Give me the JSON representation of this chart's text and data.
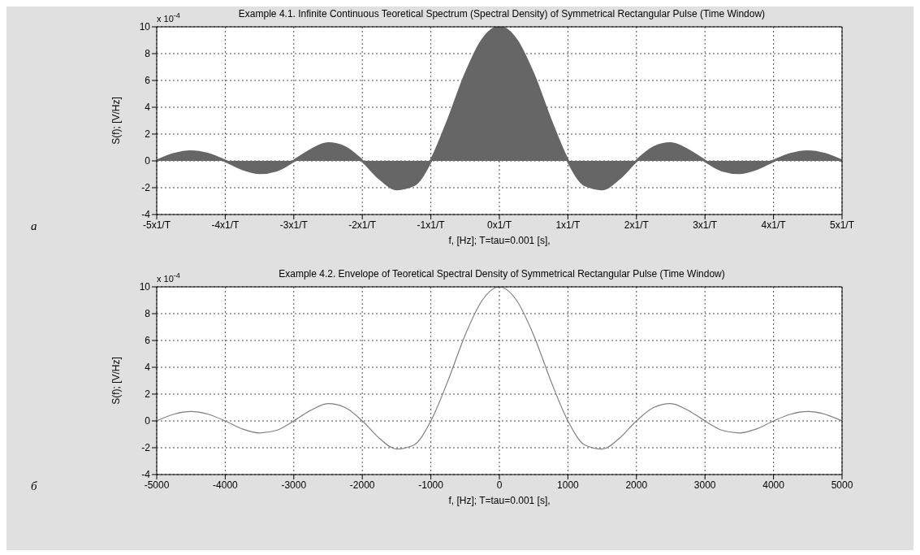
{
  "chart_data": [
    {
      "type": "area",
      "title": "Example 4.1. Infinite Continuous Teoretical Spectrum (Spectral Density) of Symmetrical Rectangular Pulse (Time Window)",
      "xlabel": "f, [Hz]; T=tau=0.001 [s],",
      "ylabel": "S(f); [V/Hz]",
      "annotations": [
        "x 10$^{-4}$",
        "а"
      ],
      "categories": [
        "-5x1/T",
        null,
        null,
        null,
        "-4x1/T",
        null,
        null,
        null,
        "-3x1/T",
        null,
        null,
        null,
        "-2x1/T",
        null,
        null,
        null,
        "-1x1/T",
        null,
        null,
        null,
        "0x1/T",
        null,
        null,
        null,
        "1x1/T",
        null,
        null,
        null,
        "2x1/T",
        null,
        null,
        null,
        "3x1/T",
        null,
        null,
        null,
        "4x1/T",
        null,
        null,
        null,
        "5x1/T"
      ],
      "values": [
        0,
        0.5,
        0.7,
        0.5,
        0,
        -0.6,
        -0.9,
        -0.7,
        0,
        0.8,
        1.3,
        1.0,
        0,
        -1.3,
        -2.1,
        -1.8,
        0,
        3.0,
        6.4,
        9.0,
        10,
        9.0,
        6.4,
        3.0,
        0,
        -1.8,
        -2.1,
        -1.3,
        0,
        1.0,
        1.3,
        0.8,
        0,
        -0.7,
        -0.9,
        -0.6,
        0,
        0.5,
        0.7,
        0.5,
        0
      ],
      "color": "#666666",
      "ylim": [
        -4,
        10
      ],
      "yticks": [
        -4,
        -2,
        0,
        2,
        4,
        6,
        8,
        10
      ],
      "grid": true
    },
    {
      "type": "line",
      "title": "Example 4.2. Envelope of Teoretical Spectral Density of Symmetrical Rectangular Pulse (Time Window)",
      "xlabel": "f, [Hz]; T=tau=0.001 [s],",
      "ylabel": "S(f); [V/Hz]",
      "annotations": [
        "x 10$^{-4}$",
        "б"
      ],
      "x": [
        -5000,
        -4750,
        -4500,
        -4250,
        -4000,
        -3750,
        -3500,
        -3250,
        -3000,
        -2750,
        -2500,
        -2250,
        -2000,
        -1750,
        -1500,
        -1250,
        -1000,
        -750,
        -500,
        -250,
        0,
        250,
        500,
        750,
        1000,
        1250,
        1500,
        1750,
        2000,
        2250,
        2500,
        2750,
        3000,
        3250,
        3500,
        3750,
        4000,
        4250,
        4500,
        4750,
        5000
      ],
      "values": [
        0,
        0.5,
        0.7,
        0.5,
        0,
        -0.6,
        -0.9,
        -0.7,
        0,
        0.8,
        1.3,
        1.0,
        0,
        -1.3,
        -2.1,
        -1.8,
        0,
        3.0,
        6.4,
        9.0,
        10,
        9.0,
        6.4,
        3.0,
        0,
        -1.8,
        -2.1,
        -1.3,
        0,
        1.0,
        1.3,
        0.8,
        0,
        -0.7,
        -0.9,
        -0.6,
        0,
        0.5,
        0.7,
        0.5,
        0
      ],
      "color": "#808080",
      "xlim": [
        -5000,
        5000
      ],
      "ylim": [
        -4,
        10
      ],
      "xticks": [
        -5000,
        -4000,
        -3000,
        -2000,
        -1000,
        0,
        1000,
        2000,
        3000,
        4000,
        5000
      ],
      "yticks": [
        -4,
        -2,
        0,
        2,
        4,
        6,
        8,
        10
      ],
      "grid": true
    }
  ]
}
